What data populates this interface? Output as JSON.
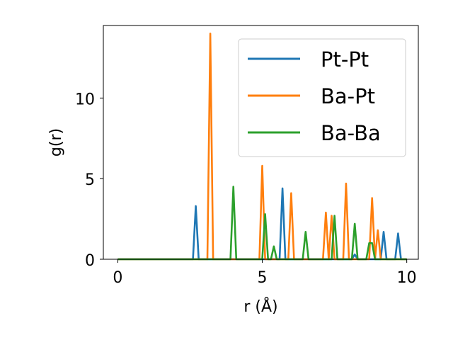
{
  "chart_data": {
    "type": "line",
    "title": "",
    "xlabel": "r (Å)",
    "ylabel": "g(r)",
    "xlim": [
      -0.5,
      10.4
    ],
    "ylim": [
      0,
      14.5
    ],
    "xticks": [
      0,
      5,
      10
    ],
    "yticks": [
      0,
      5,
      10
    ],
    "grid": false,
    "legend_position": "top-right",
    "series": [
      {
        "name": "Pt-Pt",
        "color": "#1f77b4",
        "x": [
          0,
          2.6,
          2.7,
          2.8,
          5.6,
          5.7,
          5.8,
          7.9,
          8.0,
          8.1,
          8.2,
          8.3,
          8.8,
          8.9,
          9.0,
          9.1,
          9.2,
          9.3,
          9.6,
          9.7,
          9.8,
          10.0
        ],
        "y": [
          0,
          0,
          3.3,
          0,
          0,
          4.4,
          0,
          0,
          0,
          0,
          0.3,
          0,
          0,
          0,
          0,
          0,
          1.7,
          0,
          0,
          1.6,
          0,
          0
        ]
      },
      {
        "name": "Ba-Pt",
        "color": "#ff7f0e",
        "x": [
          0,
          3.1,
          3.2,
          3.3,
          4.9,
          5.0,
          5.1,
          5.9,
          6.0,
          6.1,
          7.1,
          7.2,
          7.3,
          7.4,
          7.5,
          7.8,
          7.9,
          8.0,
          8.7,
          8.8,
          8.9,
          9.0,
          9.1,
          10.0
        ],
        "y": [
          0,
          0,
          14.0,
          0,
          0,
          5.8,
          0,
          0,
          4.1,
          0,
          0,
          2.9,
          0,
          2.7,
          0,
          0,
          4.7,
          0,
          0,
          3.8,
          0,
          1.8,
          0,
          0
        ]
      },
      {
        "name": "Ba-Ba",
        "color": "#2ca02c",
        "x": [
          0,
          3.9,
          4.0,
          4.1,
          5.0,
          5.1,
          5.2,
          5.3,
          5.4,
          5.5,
          6.4,
          6.5,
          6.6,
          7.4,
          7.5,
          7.6,
          8.1,
          8.2,
          8.3,
          8.6,
          8.7,
          8.8,
          8.9,
          9.9,
          10.0
        ],
        "y": [
          0,
          0,
          4.5,
          0,
          0,
          2.8,
          0,
          0,
          0.8,
          0,
          0,
          1.7,
          0,
          0,
          2.7,
          0,
          0,
          2.2,
          0,
          0,
          1.0,
          1.0,
          0,
          0,
          0
        ]
      }
    ]
  }
}
